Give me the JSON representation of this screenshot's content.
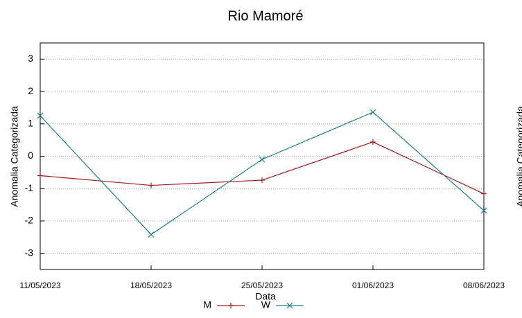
{
  "chart_data": {
    "type": "line",
    "title": "Rio Mamoré",
    "xlabel": "Data",
    "ylabel": "Anomalia Categorizada",
    "clipped_ylabel": "Anomalia Categorizada",
    "categories": [
      "11/05/2023",
      "18/05/2023",
      "25/05/2023",
      "01/06/2023",
      "08/06/2023"
    ],
    "series": [
      {
        "name": "M",
        "color": "#a0171f",
        "marker": "+",
        "values": [
          -0.6,
          -0.9,
          -0.74,
          0.44,
          -1.16
        ]
      },
      {
        "name": "W",
        "color": "#1a7f8a",
        "marker": "x",
        "values": [
          1.25,
          -2.42,
          -0.1,
          1.36,
          -1.68
        ]
      }
    ],
    "ylim": [
      -3.5,
      3.5
    ],
    "yticks": [
      -3,
      -2,
      -1,
      0,
      1,
      2,
      3
    ],
    "grid": true
  }
}
